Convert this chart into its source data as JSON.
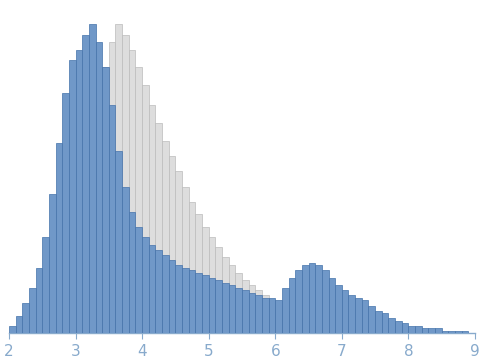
{
  "blue_bins": [
    2.0,
    2.1,
    2.2,
    2.3,
    2.4,
    2.5,
    2.6,
    2.7,
    2.8,
    2.9,
    3.0,
    3.1,
    3.2,
    3.3,
    3.4,
    3.5,
    3.6,
    3.7,
    3.8,
    3.9,
    4.0,
    4.1,
    4.2,
    4.3,
    4.4,
    4.5,
    4.6,
    4.7,
    4.8,
    4.9,
    5.0,
    5.1,
    5.2,
    5.3,
    5.4,
    5.5,
    5.6,
    5.7,
    5.8,
    5.9,
    6.0,
    6.1,
    6.2,
    6.3,
    6.4,
    6.5,
    6.6,
    6.7,
    6.8,
    6.9,
    7.0,
    7.1,
    7.2,
    7.3,
    7.4,
    7.5,
    7.6,
    7.7,
    7.8,
    7.9,
    8.0,
    8.1,
    8.2,
    8.3,
    8.4,
    8.5,
    8.6,
    8.7,
    8.8
  ],
  "blue_vals": [
    3,
    7,
    12,
    18,
    26,
    38,
    55,
    75,
    95,
    108,
    112,
    118,
    122,
    115,
    105,
    90,
    72,
    58,
    48,
    42,
    38,
    35,
    33,
    31,
    29,
    27,
    26,
    25,
    24,
    23,
    22,
    21,
    20,
    19,
    18,
    17,
    16,
    15,
    14,
    14,
    13,
    18,
    22,
    25,
    27,
    28,
    27,
    25,
    22,
    19,
    17,
    15,
    14,
    13,
    11,
    9,
    8,
    6,
    5,
    4,
    3,
    3,
    2,
    2,
    2,
    1,
    1,
    1,
    1
  ],
  "gray_bins": [
    3.3,
    3.4,
    3.5,
    3.6,
    3.7,
    3.8,
    3.9,
    4.0,
    4.1,
    4.2,
    4.3,
    4.4,
    4.5,
    4.6,
    4.7,
    4.8,
    4.9,
    5.0,
    5.1,
    5.2,
    5.3,
    5.4,
    5.5,
    5.6,
    5.7,
    5.8,
    5.9,
    6.0,
    6.1,
    6.2,
    6.3,
    6.4,
    6.5
  ],
  "gray_vals": [
    90,
    105,
    115,
    122,
    118,
    112,
    105,
    98,
    90,
    83,
    76,
    70,
    64,
    58,
    52,
    47,
    42,
    38,
    34,
    30,
    27,
    24,
    21,
    19,
    17,
    15,
    13,
    11,
    9,
    8,
    6,
    5,
    3
  ],
  "blue_color": "#7098c8",
  "blue_edge": "#4472aa",
  "gray_color": "#dddddd",
  "gray_edge": "#bbbbbb",
  "bin_width": 0.1,
  "xlim": [
    2.0,
    9.0
  ],
  "ylim": [
    0,
    130
  ],
  "xticks": [
    2,
    3,
    4,
    5,
    6,
    7,
    8,
    9
  ],
  "tick_color": "#88aacc",
  "spine_color": "#88aacc",
  "figsize": [
    4.84,
    3.63
  ],
  "dpi": 100
}
